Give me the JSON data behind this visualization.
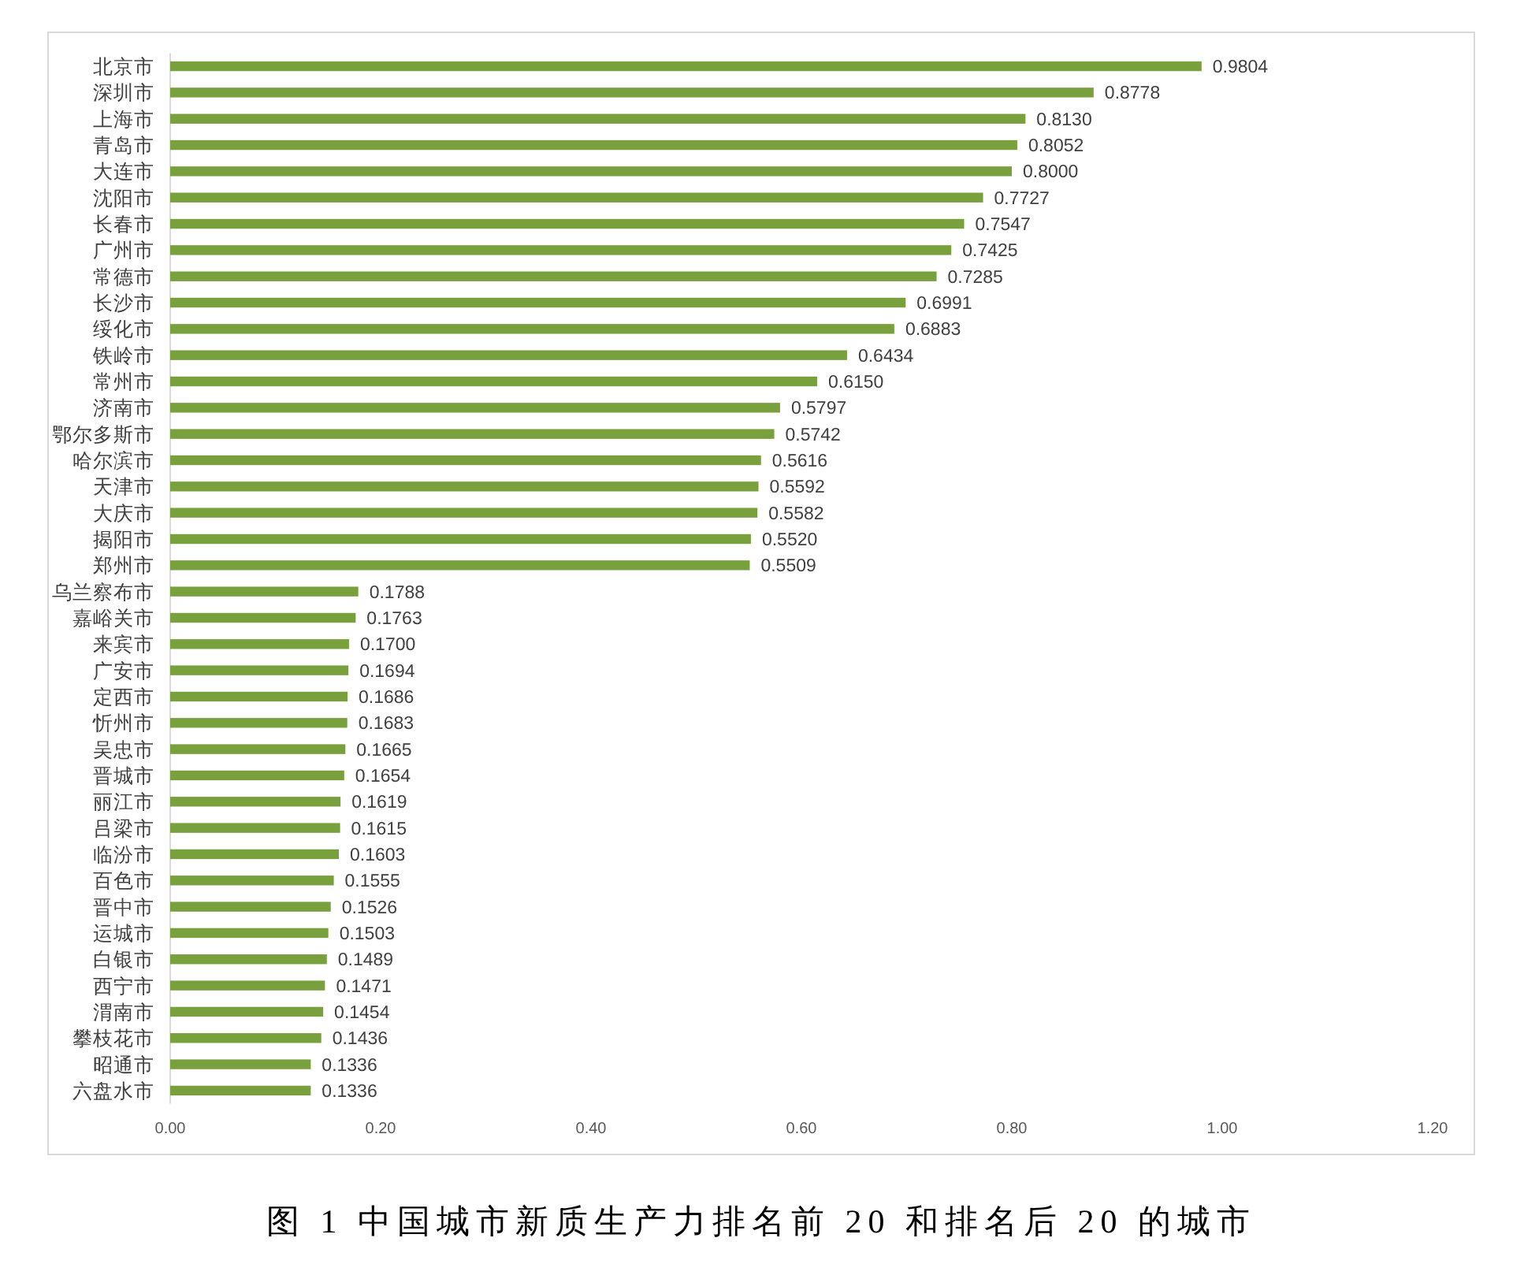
{
  "chart_data": {
    "type": "bar",
    "orientation": "horizontal",
    "categories": [
      "北京市",
      "深圳市",
      "上海市",
      "青岛市",
      "大连市",
      "沈阳市",
      "长春市",
      "广州市",
      "常德市",
      "长沙市",
      "绥化市",
      "铁岭市",
      "常州市",
      "济南市",
      "鄂尔多斯市",
      "哈尔滨市",
      "天津市",
      "大庆市",
      "揭阳市",
      "郑州市",
      "乌兰察布市",
      "嘉峪关市",
      "来宾市",
      "广安市",
      "定西市",
      "忻州市",
      "吴忠市",
      "晋城市",
      "丽江市",
      "吕梁市",
      "临汾市",
      "百色市",
      "晋中市",
      "运城市",
      "白银市",
      "西宁市",
      "渭南市",
      "攀枝花市",
      "昭通市",
      "六盘水市"
    ],
    "values": [
      0.9804,
      0.8778,
      0.813,
      0.8052,
      0.8,
      0.7727,
      0.7547,
      0.7425,
      0.7285,
      0.6991,
      0.6883,
      0.6434,
      0.615,
      0.5797,
      0.5742,
      0.5616,
      0.5592,
      0.5582,
      0.552,
      0.5509,
      0.1788,
      0.1763,
      0.17,
      0.1694,
      0.1686,
      0.1683,
      0.1665,
      0.1654,
      0.1619,
      0.1615,
      0.1603,
      0.1555,
      0.1526,
      0.1503,
      0.1489,
      0.1471,
      0.1454,
      0.1436,
      0.1336,
      0.1336
    ],
    "value_labels": [
      "0.9804",
      "0.8778",
      "0.8130",
      "0.8052",
      "0.8000",
      "0.7727",
      "0.7547",
      "0.7425",
      "0.7285",
      "0.6991",
      "0.6883",
      "0.6434",
      "0.6150",
      "0.5797",
      "0.5742",
      "0.5616",
      "0.5592",
      "0.5582",
      "0.5520",
      "0.5509",
      "0.1788",
      "0.1763",
      "0.1700",
      "0.1694",
      "0.1686",
      "0.1683",
      "0.1665",
      "0.1654",
      "0.1619",
      "0.1615",
      "0.1603",
      "0.1555",
      "0.1526",
      "0.1503",
      "0.1489",
      "0.1471",
      "0.1454",
      "0.1436",
      "0.1336",
      "0.1336"
    ],
    "color": "#78a03c",
    "xlim": [
      0,
      1.2
    ],
    "xticks": [
      {
        "value": 0,
        "label": "0.00"
      },
      {
        "value": 0.2,
        "label": "0.20"
      },
      {
        "value": 0.4,
        "label": "0.40"
      },
      {
        "value": 0.6,
        "label": "0.60"
      },
      {
        "value": 0.8,
        "label": "0.80"
      },
      {
        "value": 1.0,
        "label": "1.00"
      },
      {
        "value": 1.2,
        "label": "1.20"
      }
    ],
    "annotations": [
      "图 1 中国城市新质生产力排名前 20 和排名后 20 的城市"
    ]
  }
}
